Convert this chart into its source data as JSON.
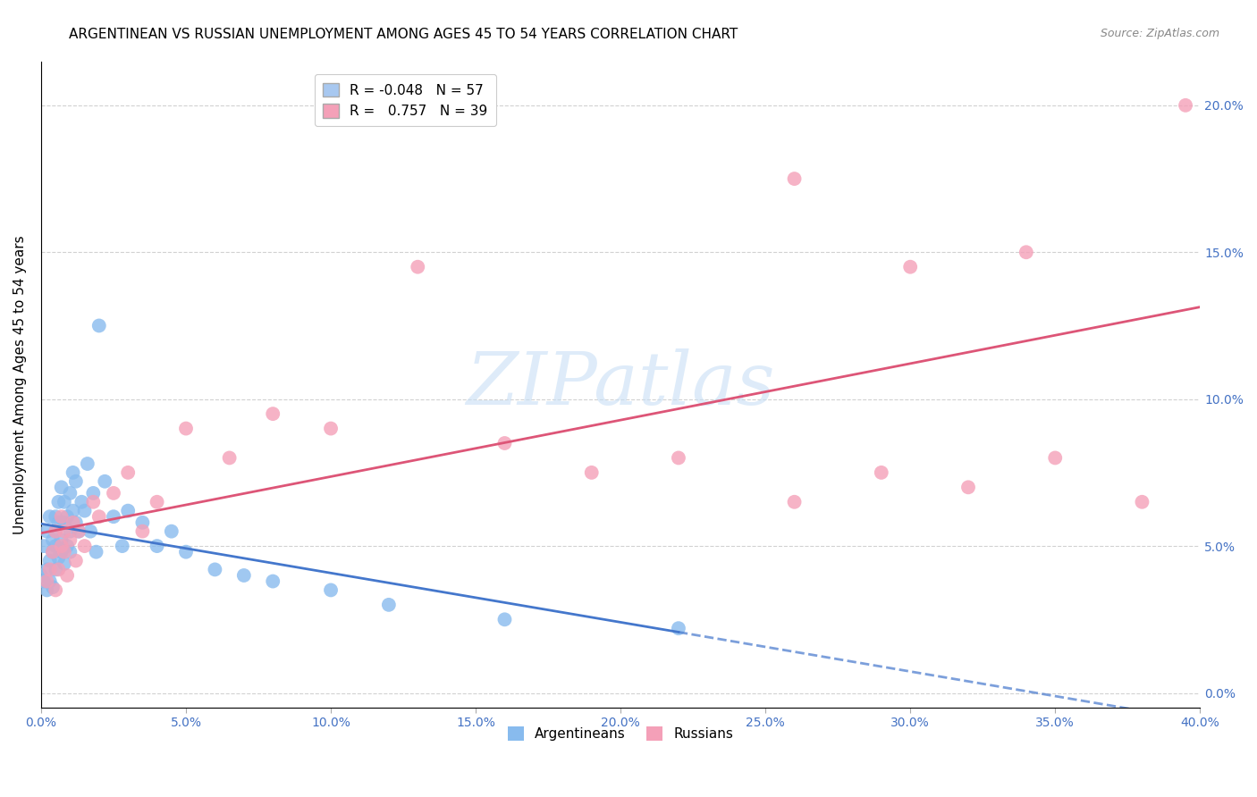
{
  "title": "ARGENTINEAN VS RUSSIAN UNEMPLOYMENT AMONG AGES 45 TO 54 YEARS CORRELATION CHART",
  "source": "Source: ZipAtlas.com",
  "ylabel": "Unemployment Among Ages 45 to 54 years",
  "xlim": [
    0.0,
    0.4
  ],
  "ylim": [
    -0.005,
    0.215
  ],
  "yticks": [
    0.0,
    0.05,
    0.1,
    0.15,
    0.2
  ],
  "xticks": [
    0.0,
    0.05,
    0.1,
    0.15,
    0.2,
    0.25,
    0.3,
    0.35,
    0.4
  ],
  "legend_entries": [
    {
      "label": "R = -0.048   N = 57",
      "color": "#a8c8f0"
    },
    {
      "label": "R =   0.757   N = 39",
      "color": "#f4a0b8"
    }
  ],
  "argentinean_x": [
    0.0,
    0.001,
    0.001,
    0.002,
    0.002,
    0.002,
    0.003,
    0.003,
    0.003,
    0.004,
    0.004,
    0.004,
    0.005,
    0.005,
    0.005,
    0.005,
    0.006,
    0.006,
    0.006,
    0.007,
    0.007,
    0.007,
    0.008,
    0.008,
    0.008,
    0.009,
    0.009,
    0.01,
    0.01,
    0.01,
    0.011,
    0.011,
    0.012,
    0.012,
    0.013,
    0.014,
    0.015,
    0.016,
    0.017,
    0.018,
    0.019,
    0.02,
    0.022,
    0.025,
    0.028,
    0.03,
    0.035,
    0.04,
    0.045,
    0.05,
    0.06,
    0.07,
    0.08,
    0.1,
    0.12,
    0.16,
    0.22
  ],
  "argentinean_y": [
    0.04,
    0.038,
    0.05,
    0.042,
    0.055,
    0.035,
    0.045,
    0.06,
    0.038,
    0.048,
    0.052,
    0.036,
    0.055,
    0.042,
    0.05,
    0.06,
    0.058,
    0.046,
    0.065,
    0.048,
    0.07,
    0.052,
    0.058,
    0.044,
    0.065,
    0.05,
    0.06,
    0.055,
    0.068,
    0.048,
    0.075,
    0.062,
    0.058,
    0.072,
    0.055,
    0.065,
    0.062,
    0.078,
    0.055,
    0.068,
    0.048,
    0.125,
    0.072,
    0.06,
    0.05,
    0.062,
    0.058,
    0.05,
    0.055,
    0.048,
    0.042,
    0.04,
    0.038,
    0.035,
    0.03,
    0.025,
    0.022
  ],
  "russian_x": [
    0.002,
    0.003,
    0.004,
    0.005,
    0.005,
    0.006,
    0.007,
    0.007,
    0.008,
    0.008,
    0.009,
    0.01,
    0.011,
    0.012,
    0.013,
    0.015,
    0.018,
    0.02,
    0.025,
    0.03,
    0.035,
    0.04,
    0.05,
    0.065,
    0.08,
    0.1,
    0.13,
    0.16,
    0.19,
    0.22,
    0.26,
    0.29,
    0.32,
    0.35,
    0.38,
    0.395,
    0.26,
    0.3,
    0.34
  ],
  "russian_y": [
    0.038,
    0.042,
    0.048,
    0.035,
    0.055,
    0.042,
    0.05,
    0.06,
    0.048,
    0.055,
    0.04,
    0.052,
    0.058,
    0.045,
    0.055,
    0.05,
    0.065,
    0.06,
    0.068,
    0.075,
    0.055,
    0.065,
    0.09,
    0.08,
    0.095,
    0.09,
    0.145,
    0.085,
    0.075,
    0.08,
    0.065,
    0.075,
    0.07,
    0.08,
    0.065,
    0.2,
    0.175,
    0.145,
    0.15
  ],
  "arg_scatter_color": "#88bbee",
  "rus_scatter_color": "#f4a0b8",
  "arg_line_color": "#4477cc",
  "rus_line_color": "#dd5577",
  "background_color": "#ffffff",
  "grid_color": "#cccccc",
  "tick_color": "#4472c4",
  "title_fontsize": 11,
  "source_fontsize": 9,
  "ylabel_fontsize": 11,
  "tick_fontsize": 10,
  "legend_fontsize": 11,
  "watermark": "ZIPatlas",
  "watermark_color": "#c8dff5",
  "arg_label": "Argentineans",
  "rus_label": "Russians"
}
